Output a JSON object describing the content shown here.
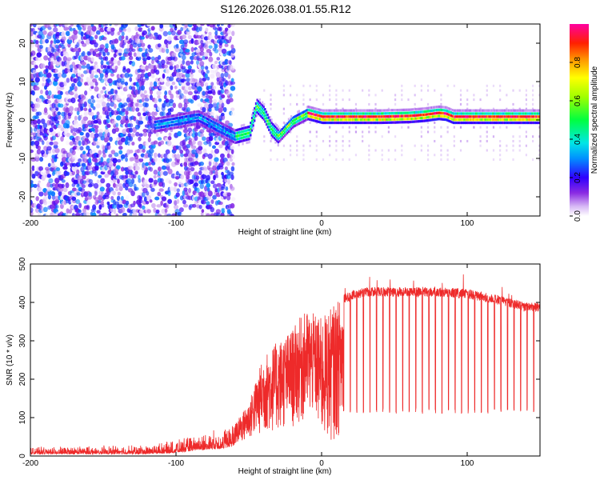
{
  "title": "S126.2026.038.01.55.R12",
  "chart_data": [
    {
      "type": "heatmap",
      "name": "spectrogram",
      "xlabel": "Height of straight line (km)",
      "ylabel": "Frequency (Hz)",
      "xlim": [
        -200,
        150
      ],
      "ylim": [
        -25,
        25
      ],
      "xticks": [
        -200,
        -100,
        0,
        100
      ],
      "yticks": [
        20,
        10,
        0,
        -10,
        -20
      ],
      "xtick_labels": [
        "-200",
        "-100",
        "0",
        "100"
      ],
      "ytick_labels": [
        "20",
        "10",
        "0",
        "-10",
        "-20"
      ],
      "colorbar": {
        "label": "Normalized spectral amplitude",
        "range": [
          0,
          1
        ],
        "ticks": [
          0.0,
          0.2,
          0.4,
          0.6,
          0.8
        ],
        "tick_labels": [
          "0.0",
          "0.2",
          "0.4",
          "0.6",
          "0.8"
        ]
      },
      "ridge": {
        "description_values": "dominant frequency line",
        "x": [
          -115,
          -100,
          -85,
          -70,
          -60,
          -50,
          -45,
          -40,
          -35,
          -30,
          -20,
          -15,
          -10,
          0,
          20,
          40,
          60,
          70,
          80,
          85,
          90,
          100,
          120,
          150
        ],
        "y": [
          -1,
          0,
          1,
          -2,
          -4,
          -3,
          4,
          2,
          -2,
          -4,
          0,
          1,
          2,
          1,
          1,
          1,
          1.2,
          1.5,
          2,
          1.8,
          1,
          1,
          1,
          1
        ],
        "peak_amplitude": 0.95
      },
      "noise_region": {
        "x_range": [
          -200,
          -60
        ],
        "amplitude": [
          0.0,
          0.3
        ]
      }
    },
    {
      "type": "line",
      "name": "snr",
      "xlabel": "Height of straight line (km)",
      "ylabel": "SNR (10 * v/v)",
      "xlim": [
        -200,
        150
      ],
      "ylim": [
        0,
        500
      ],
      "xticks": [
        -200,
        -100,
        0,
        100
      ],
      "yticks": [
        0,
        100,
        200,
        300,
        400,
        500
      ],
      "xtick_labels": [
        "-200",
        "-100",
        "0",
        "100"
      ],
      "ytick_labels": [
        "0",
        "100",
        "200",
        "300",
        "400",
        "500"
      ],
      "color": "#ee2a2a",
      "envelope": {
        "x": [
          -200,
          -120,
          -100,
          -85,
          -70,
          -60,
          -50,
          -45,
          -40,
          -30,
          -20,
          -15,
          -10,
          -5,
          0,
          10,
          15,
          20,
          30,
          50,
          80,
          100,
          120,
          140,
          150
        ],
        "y_low": [
          5,
          5,
          8,
          15,
          18,
          25,
          40,
          50,
          55,
          60,
          70,
          80,
          90,
          100,
          30,
          40,
          60,
          80,
          120,
          120,
          120,
          110,
          110,
          110,
          110
        ],
        "y_high": [
          20,
          25,
          35,
          50,
          60,
          80,
          140,
          200,
          260,
          300,
          330,
          360,
          380,
          370,
          360,
          400,
          420,
          430,
          440,
          440,
          440,
          435,
          420,
          400,
          400
        ]
      },
      "dropouts": {
        "x_start": 15,
        "x_end": 150,
        "spacing": 4.5,
        "depth": 110
      }
    }
  ]
}
